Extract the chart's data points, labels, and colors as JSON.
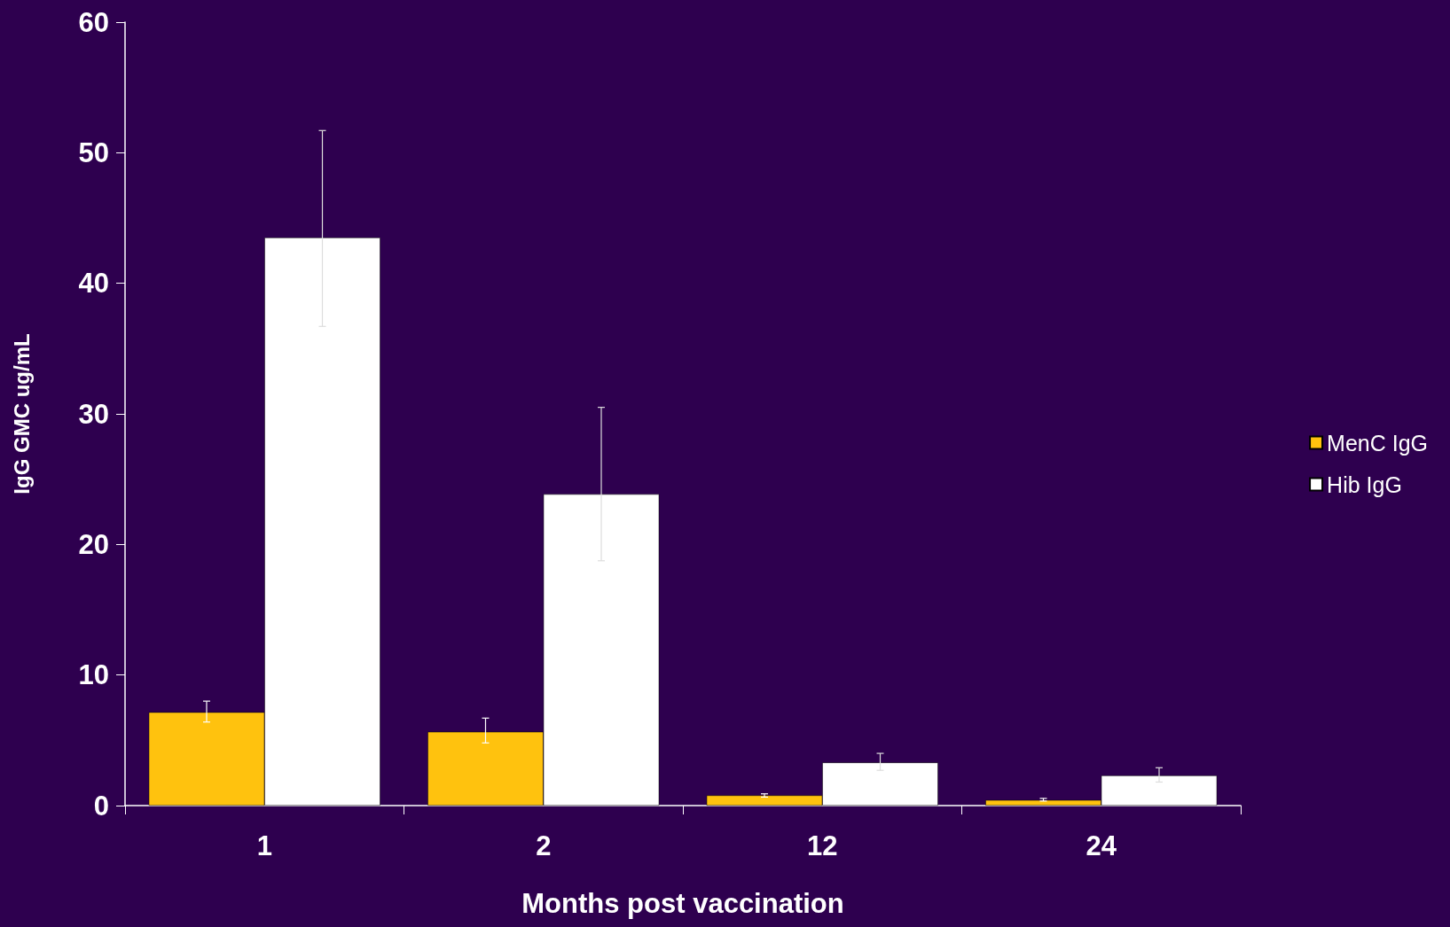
{
  "chart_data": {
    "type": "bar",
    "xlabel": "Months post vaccination",
    "ylabel": "IgG GMC ug/mL",
    "categories": [
      "1",
      "2",
      "12",
      "24"
    ],
    "series": [
      {
        "name": "MenC IgG",
        "color": "#ffc20e",
        "values": [
          7.15,
          5.65,
          0.78,
          0.42
        ],
        "errors": [
          [
            6.4,
            8.0
          ],
          [
            4.8,
            6.7
          ],
          [
            0.65,
            0.9
          ],
          [
            0.35,
            0.55
          ]
        ]
      },
      {
        "name": "Hib IgG",
        "color": "#ffffff",
        "values": [
          43.5,
          23.85,
          3.3,
          2.3
        ],
        "errors": [
          [
            36.7,
            51.7
          ],
          [
            18.75,
            30.5
          ],
          [
            2.7,
            4.0
          ],
          [
            1.8,
            2.9
          ]
        ]
      }
    ],
    "ylim": [
      0,
      60
    ],
    "yticks": [
      0,
      10,
      20,
      30,
      40,
      50,
      60
    ],
    "grid": false,
    "legend": "right"
  }
}
